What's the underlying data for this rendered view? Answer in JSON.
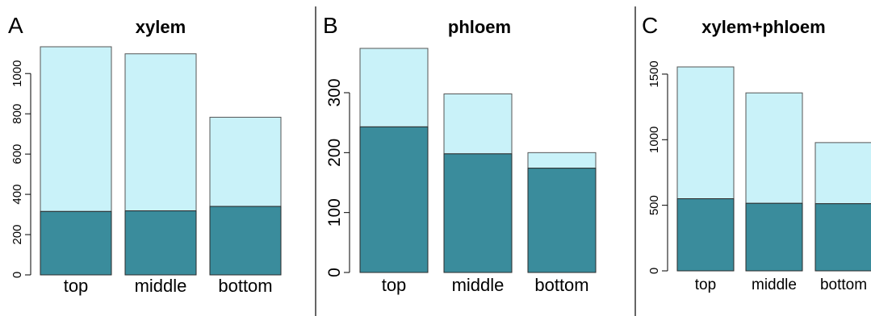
{
  "colors": {
    "top_segment": "#c9f2f9",
    "bottom_segment": "#3a8c9c",
    "bar_stroke": "#555555",
    "axis": "#000000",
    "divider": "#000000"
  },
  "chart_data": [
    {
      "type": "bar",
      "stacked": true,
      "panel_letter": "A",
      "title": "xylem",
      "categories": [
        "top",
        "middle",
        "bottom"
      ],
      "series": [
        {
          "values": [
            315,
            318,
            340
          ]
        },
        {
          "values": [
            818,
            780,
            443
          ]
        }
      ],
      "totals": [
        1133,
        1098,
        783
      ],
      "ylim": [
        0,
        1133
      ],
      "yticks": [
        "0",
        "200",
        "400",
        "600",
        "800",
        "1000"
      ],
      "ytick_values": [
        0,
        200,
        400,
        600,
        800,
        1000
      ],
      "grid": false
    },
    {
      "type": "bar",
      "stacked": true,
      "panel_letter": "B",
      "title": "phloem",
      "categories": [
        "top",
        "middle",
        "bottom"
      ],
      "series": [
        {
          "values": [
            243,
            198,
            174
          ]
        },
        {
          "values": [
            131,
            100,
            26
          ]
        }
      ],
      "totals": [
        374,
        298,
        200
      ],
      "ylim": [
        0,
        374
      ],
      "yticks": [
        "0",
        "100",
        "200",
        "300"
      ],
      "ytick_values": [
        0,
        100,
        200,
        300
      ],
      "grid": false
    },
    {
      "type": "bar",
      "stacked": true,
      "panel_letter": "C",
      "title": "xylem+phloem",
      "categories": [
        "top",
        "middle",
        "bottom"
      ],
      "series": [
        {
          "values": [
            550,
            515,
            512
          ]
        },
        {
          "values": [
            1005,
            842,
            466
          ]
        }
      ],
      "totals": [
        1555,
        1357,
        978
      ],
      "ylim": [
        0,
        1555
      ],
      "yticks": [
        "0",
        "500",
        "1000",
        "1500"
      ],
      "ytick_values": [
        0,
        500,
        1000,
        1500
      ],
      "grid": false
    }
  ]
}
